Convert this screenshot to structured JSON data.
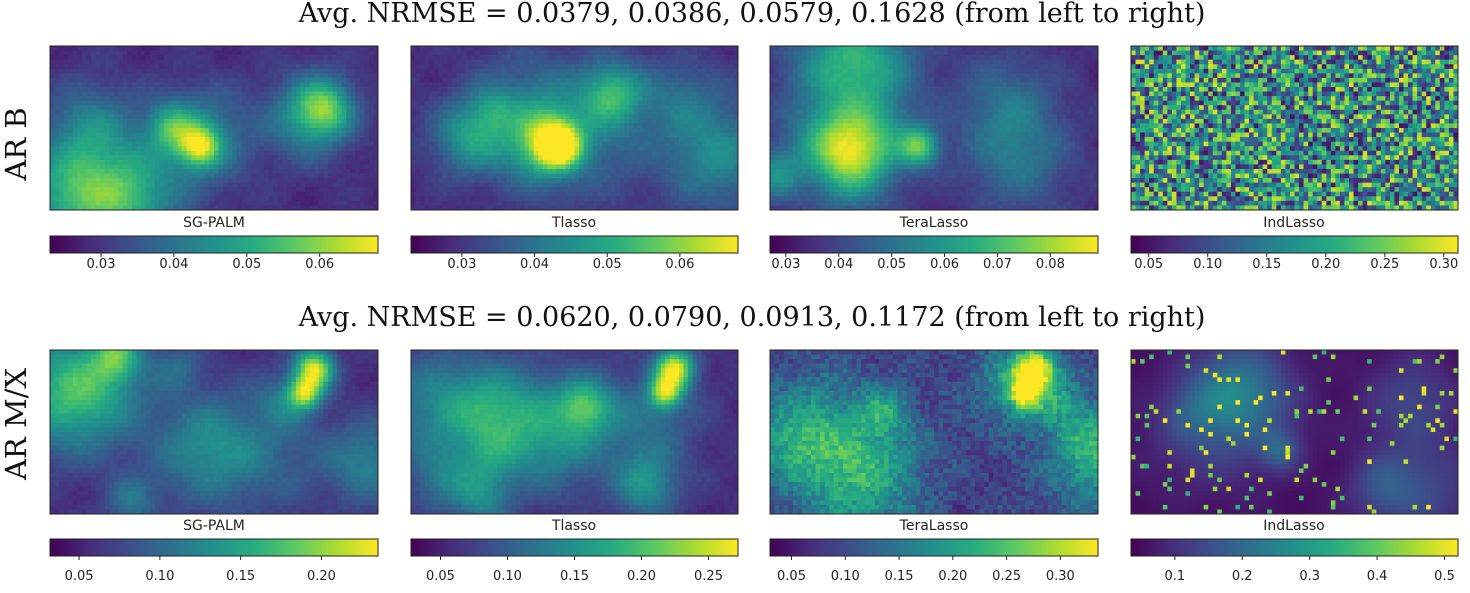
{
  "colormap": "viridis",
  "chart_data": [
    {
      "type": "heatmap",
      "row_label": "AR B",
      "title": "Avg. NRMSE = 0.0379, 0.0386, 0.0579, 0.1628 (from left to right)",
      "nrmse": [
        0.0379,
        0.0386,
        0.0579,
        0.1628
      ],
      "panels": [
        {
          "method": "SG-PALM",
          "pattern": "smooth",
          "colorbar": {
            "range": [
              0.023,
              0.068
            ],
            "ticks": [
              "0.03",
              "0.04",
              "0.05",
              "0.06"
            ]
          }
        },
        {
          "method": "Tlasso",
          "pattern": "smooth",
          "colorbar": {
            "range": [
              0.023,
              0.068
            ],
            "ticks": [
              "0.03",
              "0.04",
              "0.05",
              "0.06"
            ]
          }
        },
        {
          "method": "TeraLasso",
          "pattern": "smooth",
          "colorbar": {
            "range": [
              0.027,
              0.089
            ],
            "ticks": [
              "0.03",
              "0.04",
              "0.05",
              "0.06",
              "0.07",
              "0.08"
            ]
          }
        },
        {
          "method": "IndLasso",
          "pattern": "noise",
          "colorbar": {
            "range": [
              0.035,
              0.312
            ],
            "ticks": [
              "0.05",
              "0.10",
              "0.15",
              "0.20",
              "0.25",
              "0.30"
            ]
          }
        }
      ]
    },
    {
      "type": "heatmap",
      "row_label": "AR M/X",
      "title": "Avg. NRMSE = 0.0620, 0.0790, 0.0913, 0.1172 (from left to right)",
      "nrmse": [
        0.062,
        0.079,
        0.0913,
        0.1172
      ],
      "panels": [
        {
          "method": "SG-PALM",
          "pattern": "smooth-hot",
          "colorbar": {
            "range": [
              0.032,
              0.235
            ],
            "ticks": [
              "0.05",
              "0.10",
              "0.15",
              "0.20"
            ]
          }
        },
        {
          "method": "Tlasso",
          "pattern": "smooth-hot",
          "colorbar": {
            "range": [
              0.028,
              0.272
            ],
            "ticks": [
              "0.05",
              "0.10",
              "0.15",
              "0.20",
              "0.25"
            ]
          }
        },
        {
          "method": "TeraLasso",
          "pattern": "grainy-hot",
          "colorbar": {
            "range": [
              0.03,
              0.335
            ],
            "ticks": [
              "0.05",
              "0.10",
              "0.15",
              "0.20",
              "0.25",
              "0.30"
            ]
          }
        },
        {
          "method": "IndLasso",
          "pattern": "speckle",
          "colorbar": {
            "range": [
              0.035,
              0.52
            ],
            "ticks": [
              "0.1",
              "0.2",
              "0.3",
              "0.4",
              "0.5"
            ]
          }
        }
      ]
    }
  ]
}
